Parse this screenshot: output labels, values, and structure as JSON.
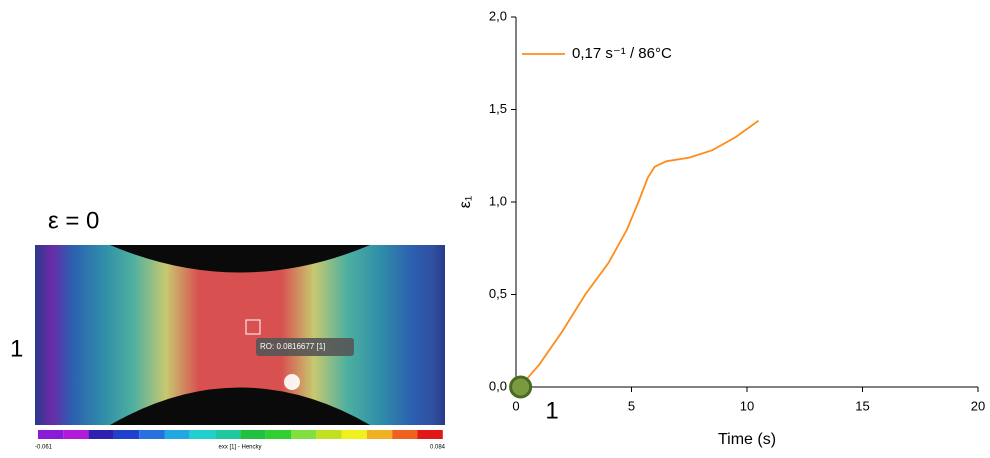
{
  "chart_data": {
    "type": "line",
    "x_label": "Time (s)",
    "y_label": "ε₁",
    "x": [
      0.3,
      1,
      2,
      2.5,
      3,
      4,
      4.8,
      5.3,
      5.7,
      6,
      6.5,
      7.5,
      8.5,
      9.5,
      10.5
    ],
    "series": [
      {
        "name": "0,17 s⁻¹ / 86°C",
        "color": "#ff8c1a",
        "values": [
          0.02,
          0.12,
          0.3,
          0.4,
          0.5,
          0.67,
          0.85,
          1.0,
          1.13,
          1.19,
          1.22,
          1.24,
          1.28,
          1.35,
          1.44
        ]
      }
    ],
    "xlim": [
      0,
      20
    ],
    "xticks": [
      0,
      5,
      10,
      15,
      20
    ],
    "ylim": [
      0,
      2
    ],
    "yticks": [
      {
        "value": 0,
        "label": "0,0"
      },
      {
        "value": 0.5,
        "label": "0,5"
      },
      {
        "value": 1,
        "label": "1,0"
      },
      {
        "value": 1.5,
        "label": "1,5"
      },
      {
        "value": 2,
        "label": "2,0"
      }
    ],
    "legend": "upper left",
    "current_point": {
      "x": 0.2,
      "y": 0,
      "label": "1"
    }
  },
  "panel": {
    "title": "ε = 0",
    "row_label": "1",
    "tooltip": "RO: 0.0816677 [1]",
    "colorbar": {
      "min_label": "-0.061",
      "name": "exx [1] - Hencky",
      "max_label": "0.084"
    }
  }
}
